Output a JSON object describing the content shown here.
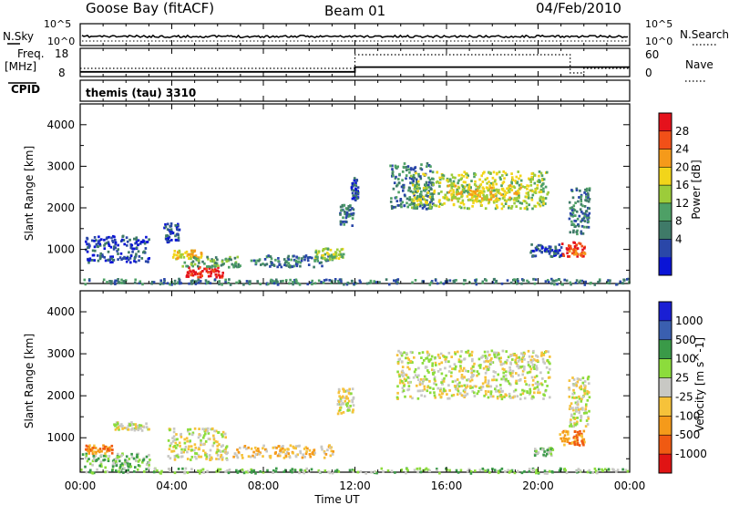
{
  "header": {
    "station": "Goose Bay (fitACF)",
    "beam": "Beam 01",
    "date": "04/Feb/2010"
  },
  "colors": {
    "ink": "#000000",
    "power_scale": [
      "#0a14d6",
      "#2a47a8",
      "#3f7a68",
      "#4ea066",
      "#9ccc3a",
      "#f2d51a",
      "#f59a1a",
      "#f25018",
      "#e5121c"
    ],
    "velocity_scale": [
      "#e01414",
      "#f05a12",
      "#f59a1a",
      "#f6c23a",
      "#c8c8c4",
      "#8cdc3c",
      "#3a9a48",
      "#3a5fb0",
      "#1a1fd4"
    ]
  },
  "top_panels": {
    "nsky_label": "N.Sky",
    "nsearch_label": "N.Search",
    "noise_left_ticks": [
      "10^5",
      "10^0"
    ],
    "noise_right_ticks": [
      "10^5",
      "10^0"
    ],
    "freq_label": "Freq.",
    "freq_unit": "[MHz]",
    "freq_ticks": [
      "18",
      "8"
    ],
    "nave_label": "Nave",
    "nave_ticks": [
      "60",
      "0"
    ],
    "cpid_label": "CPID",
    "cpid_value": "themis (tau) 3310",
    "freq_series": {
      "x_hours": [
        0,
        12,
        12,
        24
      ],
      "y_mhz": [
        10,
        10,
        12,
        12
      ]
    },
    "nave_series": {
      "x_hours": [
        0,
        12,
        12,
        21.4,
        21.4,
        22,
        22,
        24
      ],
      "y": [
        15,
        15,
        60,
        60,
        0,
        0,
        15,
        15
      ]
    }
  },
  "chart_data": [
    {
      "type": "heatmap",
      "name": "Power",
      "xlabel": "",
      "ylabel": "Slant Range [km]",
      "xlim": [
        0,
        24
      ],
      "ylim": [
        180,
        4500
      ],
      "yticks": [
        "1000",
        "2000",
        "3000",
        "4000"
      ],
      "colorbar_label": "Power [dB]",
      "colorbar_ticks": [
        "28",
        "24",
        "20",
        "16",
        "12",
        "8",
        "4"
      ],
      "clusters": [
        {
          "t0": 0.0,
          "t1": 24.0,
          "r0": 180,
          "r1": 320,
          "level": 2
        },
        {
          "t0": 0.2,
          "t1": 3.0,
          "r0": 700,
          "r1": 1350,
          "level": 1
        },
        {
          "t0": 3.6,
          "t1": 4.3,
          "r0": 1200,
          "r1": 1650,
          "level": 1
        },
        {
          "t0": 4.0,
          "t1": 5.4,
          "r0": 800,
          "r1": 1000,
          "level": 5
        },
        {
          "t0": 4.6,
          "t1": 6.2,
          "r0": 350,
          "r1": 600,
          "level": 8
        },
        {
          "t0": 4.4,
          "t1": 7.0,
          "r0": 600,
          "r1": 850,
          "level": 3
        },
        {
          "t0": 7.4,
          "t1": 10.8,
          "r0": 600,
          "r1": 880,
          "level": 2
        },
        {
          "t0": 10.2,
          "t1": 11.5,
          "r0": 780,
          "r1": 1050,
          "level": 4
        },
        {
          "t0": 11.3,
          "t1": 11.9,
          "r0": 1600,
          "r1": 2100,
          "level": 2
        },
        {
          "t0": 11.8,
          "t1": 12.1,
          "r0": 2200,
          "r1": 2750,
          "level": 1
        },
        {
          "t0": 13.5,
          "t1": 15.4,
          "r0": 2000,
          "r1": 3100,
          "level": 2
        },
        {
          "t0": 14.4,
          "t1": 20.4,
          "r0": 2000,
          "r1": 2900,
          "level": 4
        },
        {
          "t0": 16.0,
          "t1": 19.2,
          "r0": 2200,
          "r1": 2600,
          "level": 5
        },
        {
          "t0": 19.6,
          "t1": 21.0,
          "r0": 850,
          "r1": 1150,
          "level": 1
        },
        {
          "t0": 21.0,
          "t1": 22.0,
          "r0": 850,
          "r1": 1200,
          "level": 7
        },
        {
          "t0": 21.3,
          "t1": 22.2,
          "r0": 1400,
          "r1": 2500,
          "level": 2
        }
      ]
    },
    {
      "type": "heatmap",
      "name": "Velocity",
      "xlabel": "Time UT",
      "ylabel": "Slant Range [km]",
      "xlim": [
        0,
        24
      ],
      "ylim": [
        180,
        4500
      ],
      "xticks": [
        "00:00",
        "04:00",
        "08:00",
        "12:00",
        "16:00",
        "20:00",
        "00:00"
      ],
      "yticks": [
        "1000",
        "2000",
        "3000",
        "4000"
      ],
      "colorbar_label": "Velocity [m s^-1]",
      "colorbar_ticks": [
        "1000",
        "500",
        "100",
        "25",
        "-25",
        "-100",
        "-500",
        "-1000"
      ],
      "clusters": [
        {
          "t0": 0.0,
          "t1": 24.0,
          "r0": 180,
          "r1": 300,
          "level": 5
        },
        {
          "t0": 0.0,
          "t1": 3.0,
          "r0": 300,
          "r1": 650,
          "level": 5
        },
        {
          "t0": 0.2,
          "t1": 1.4,
          "r0": 650,
          "r1": 850,
          "level": 2
        },
        {
          "t0": 1.4,
          "t1": 3.0,
          "r0": 1200,
          "r1": 1400,
          "level": 4
        },
        {
          "t0": 3.8,
          "t1": 6.4,
          "r0": 500,
          "r1": 1250,
          "level": 4
        },
        {
          "t0": 6.5,
          "t1": 11.0,
          "r0": 550,
          "r1": 850,
          "level": 3
        },
        {
          "t0": 11.2,
          "t1": 11.9,
          "r0": 1600,
          "r1": 2200,
          "level": 4
        },
        {
          "t0": 13.8,
          "t1": 20.5,
          "r0": 1950,
          "r1": 3100,
          "level": 4
        },
        {
          "t0": 19.8,
          "t1": 20.6,
          "r0": 600,
          "r1": 800,
          "level": 5
        },
        {
          "t0": 20.9,
          "t1": 22.0,
          "r0": 850,
          "r1": 1200,
          "level": 2
        },
        {
          "t0": 21.3,
          "t1": 22.2,
          "r0": 1300,
          "r1": 2500,
          "level": 4
        }
      ]
    }
  ]
}
